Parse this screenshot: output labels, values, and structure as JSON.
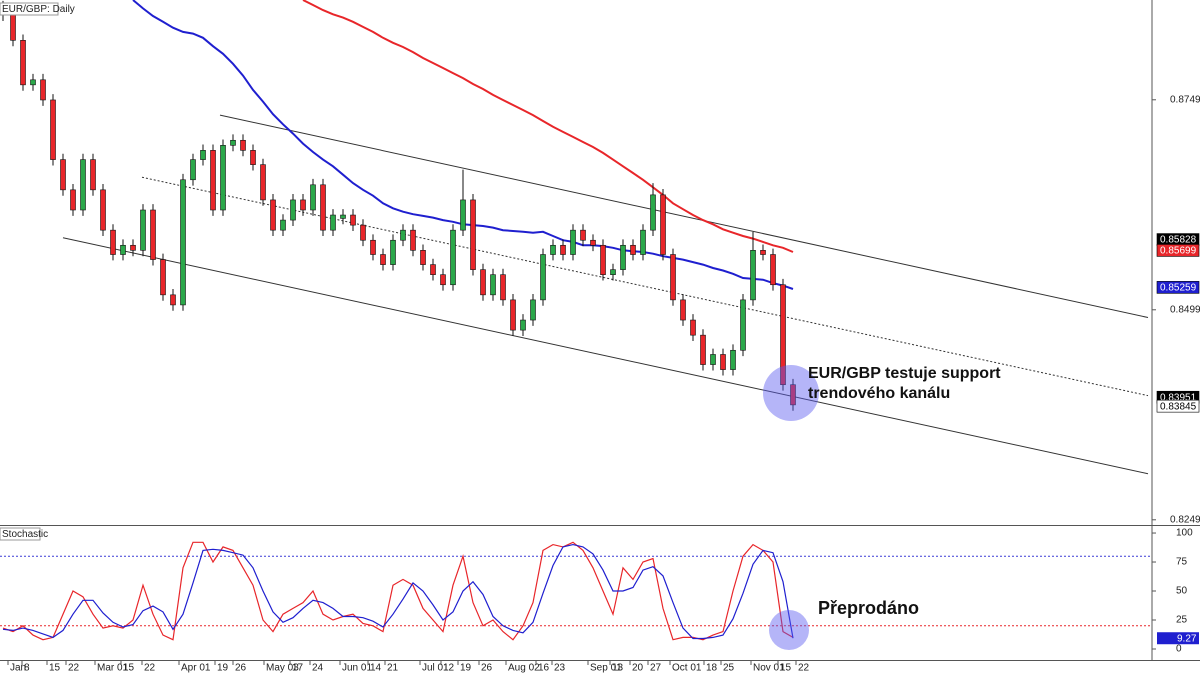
{
  "chart_data": [
    {
      "type": "candlestick",
      "title": "EUR/GBP: Daily",
      "up_color": "#2ba84a",
      "down_color": "#e8262a",
      "open": [
        0.886,
        0.885,
        0.882,
        0.8767,
        0.8773,
        0.8749,
        0.8678,
        0.8642,
        0.8618,
        0.8678,
        0.8642,
        0.8594,
        0.8565,
        0.8576,
        0.857,
        0.8618,
        0.8559,
        0.8517,
        0.8505,
        0.8654,
        0.8678,
        0.8689,
        0.8618,
        0.8695,
        0.8701,
        0.8689,
        0.8672,
        0.863,
        0.8594,
        0.8606,
        0.863,
        0.8618,
        0.8648,
        0.8594,
        0.8608,
        0.8612,
        0.86,
        0.8582,
        0.8565,
        0.8553,
        0.8582,
        0.8594,
        0.857,
        0.8553,
        0.8541,
        0.8529,
        0.8594,
        0.863,
        0.8547,
        0.8517,
        0.8541,
        0.8511,
        0.8475,
        0.8487,
        0.8511,
        0.8565,
        0.8576,
        0.8565,
        0.8594,
        0.8582,
        0.8576,
        0.8541,
        0.8547,
        0.8576,
        0.8565,
        0.8594,
        0.8636,
        0.8565,
        0.8511,
        0.8487,
        0.8469,
        0.8434,
        0.8446,
        0.8428,
        0.8451,
        0.8511,
        0.857,
        0.8565,
        0.8529,
        0.841
      ],
      "high": [
        0.8867,
        0.8857,
        0.8827,
        0.878,
        0.878,
        0.8756,
        0.8685,
        0.8649,
        0.8685,
        0.8685,
        0.8649,
        0.8601,
        0.8583,
        0.8583,
        0.8625,
        0.8625,
        0.8566,
        0.8524,
        0.8661,
        0.8685,
        0.8696,
        0.8696,
        0.8702,
        0.8708,
        0.8708,
        0.8696,
        0.8679,
        0.8637,
        0.8613,
        0.8637,
        0.8637,
        0.8655,
        0.8655,
        0.8619,
        0.8619,
        0.8619,
        0.8607,
        0.8589,
        0.8572,
        0.8589,
        0.8601,
        0.8601,
        0.8577,
        0.856,
        0.8548,
        0.8601,
        0.8666,
        0.8637,
        0.8554,
        0.8548,
        0.8548,
        0.8518,
        0.8494,
        0.8518,
        0.8572,
        0.8583,
        0.8583,
        0.8601,
        0.8601,
        0.8589,
        0.8583,
        0.8554,
        0.8583,
        0.8583,
        0.8601,
        0.865,
        0.8643,
        0.8572,
        0.8518,
        0.8494,
        0.8476,
        0.8453,
        0.8453,
        0.8458,
        0.8518,
        0.8592,
        0.8577,
        0.8572,
        0.8536,
        0.8417
      ],
      "low": [
        0.8843,
        0.8813,
        0.876,
        0.876,
        0.8742,
        0.8671,
        0.8635,
        0.8611,
        0.8611,
        0.8635,
        0.8587,
        0.8558,
        0.8558,
        0.8563,
        0.8563,
        0.8552,
        0.851,
        0.8498,
        0.8498,
        0.8647,
        0.8671,
        0.8611,
        0.8611,
        0.8688,
        0.8682,
        0.8665,
        0.8623,
        0.8587,
        0.8587,
        0.8599,
        0.8611,
        0.8611,
        0.8587,
        0.8587,
        0.8601,
        0.8593,
        0.8575,
        0.8558,
        0.8546,
        0.8546,
        0.8575,
        0.8563,
        0.8546,
        0.8534,
        0.8522,
        0.8522,
        0.8587,
        0.854,
        0.851,
        0.851,
        0.8504,
        0.8468,
        0.8468,
        0.848,
        0.8504,
        0.8558,
        0.8558,
        0.8558,
        0.8575,
        0.8569,
        0.8534,
        0.8534,
        0.854,
        0.8558,
        0.8558,
        0.8587,
        0.8558,
        0.8504,
        0.848,
        0.8462,
        0.8427,
        0.8427,
        0.8421,
        0.8421,
        0.8444,
        0.8504,
        0.8558,
        0.8522,
        0.8403,
        0.8379
      ],
      "close": [
        0.885,
        0.882,
        0.8767,
        0.8773,
        0.8749,
        0.8678,
        0.8642,
        0.8618,
        0.8678,
        0.8642,
        0.8594,
        0.8565,
        0.8576,
        0.857,
        0.8618,
        0.8559,
        0.8517,
        0.8505,
        0.8654,
        0.8678,
        0.8689,
        0.8618,
        0.8695,
        0.8701,
        0.8689,
        0.8672,
        0.863,
        0.8594,
        0.8606,
        0.863,
        0.8618,
        0.8648,
        0.8594,
        0.8612,
        0.8612,
        0.86,
        0.8582,
        0.8565,
        0.8553,
        0.8582,
        0.8594,
        0.857,
        0.8553,
        0.8541,
        0.8529,
        0.8594,
        0.863,
        0.8547,
        0.8517,
        0.8541,
        0.8511,
        0.8475,
        0.8487,
        0.8511,
        0.8565,
        0.8576,
        0.8565,
        0.8594,
        0.8582,
        0.8576,
        0.8541,
        0.8547,
        0.8576,
        0.8565,
        0.8594,
        0.8636,
        0.8565,
        0.8511,
        0.8487,
        0.8469,
        0.8434,
        0.8446,
        0.8428,
        0.8451,
        0.8511,
        0.857,
        0.8565,
        0.8529,
        0.841,
        0.8386
      ],
      "overlays": [
        {
          "color": "#1f1fcf",
          "values": [
            null,
            null,
            null,
            null,
            null,
            null,
            null,
            null,
            null,
            null,
            null,
            null,
            null,
            0.8868,
            0.8858,
            0.8849,
            0.8842,
            0.8835,
            0.883,
            0.8828,
            0.8823,
            0.8813,
            0.8804,
            0.8792,
            0.8778,
            0.8761,
            0.8747,
            0.8732,
            0.872,
            0.8709,
            0.8697,
            0.8687,
            0.8678,
            0.867,
            0.866,
            0.865,
            0.8642,
            0.8635,
            0.8626,
            0.862,
            0.8616,
            0.8613,
            0.8611,
            0.8609,
            0.8606,
            0.8604,
            0.8601,
            0.86,
            0.8599,
            0.8597,
            0.8594,
            0.8593,
            0.8592,
            0.8591,
            0.8592,
            0.8587,
            0.8582,
            0.858,
            0.8576,
            0.8576,
            0.8575,
            0.8573,
            0.857,
            0.8569,
            0.8568,
            0.8566,
            0.8563,
            0.8561,
            0.8559,
            0.8556,
            0.8553,
            0.8549,
            0.8546,
            0.8542,
            0.8537,
            0.8536,
            0.8535,
            0.8531,
            0.8528,
            0.8524
          ]
        },
        {
          "color": "#e8262a",
          "values": [
            null,
            null,
            null,
            null,
            null,
            null,
            null,
            null,
            null,
            null,
            null,
            null,
            null,
            null,
            null,
            null,
            null,
            null,
            null,
            null,
            null,
            null,
            null,
            null,
            null,
            null,
            null,
            null,
            null,
            null,
            0.8868,
            0.8862,
            0.8856,
            0.8851,
            0.8847,
            0.8842,
            0.8836,
            0.883,
            0.8823,
            0.8817,
            0.8812,
            0.8806,
            0.8799,
            0.8793,
            0.8787,
            0.8781,
            0.8775,
            0.8768,
            0.8762,
            0.8755,
            0.8749,
            0.8743,
            0.8737,
            0.8731,
            0.8724,
            0.8717,
            0.8711,
            0.8705,
            0.8699,
            0.8693,
            0.8686,
            0.8678,
            0.867,
            0.8662,
            0.8654,
            0.8645,
            0.8636,
            0.8626,
            0.8619,
            0.8612,
            0.8606,
            0.8601,
            0.8595,
            0.8591,
            0.8587,
            0.8584,
            0.858,
            0.8576,
            0.8573,
            0.8568
          ]
        }
      ],
      "trendlines": [
        {
          "x": [
            21.7,
            114.5
          ],
          "y": [
            0.8731,
            0.849
          ],
          "dashed": false
        },
        {
          "x": [
            6,
            114.5
          ],
          "y": [
            0.8585,
            0.8304
          ],
          "dashed": false
        },
        {
          "x": [
            13.9,
            114.5
          ],
          "y": [
            0.8657,
            0.8397
          ],
          "dashed": true
        }
      ],
      "ylim": [
        0.8243,
        0.8868
      ],
      "yticks": [
        0.87492,
        0.84992,
        0.82492
      ],
      "price_tags": [
        {
          "value": 0.85828,
          "fill": "#000000",
          "text_color": "#ffffff"
        },
        {
          "value": 0.85699,
          "fill": "#e8262a",
          "text_color": "#ffffff"
        },
        {
          "value": 0.85259,
          "fill": "#1f1fcf",
          "text_color": "#ffffff"
        },
        {
          "value": 0.83951,
          "fill": "#000000",
          "text_color": "#ffffff"
        },
        {
          "value": 0.83845,
          "fill": "#ffffff",
          "text_color": "#000000"
        }
      ],
      "annotation": [
        "EUR/GBP testuje support",
        "trendového kanálu"
      ]
    },
    {
      "type": "line",
      "title": "Stochastic",
      "series": [
        {
          "color": "#e8262a",
          "values": [
            18,
            15,
            20,
            12,
            8,
            10,
            30,
            50,
            45,
            30,
            18,
            20,
            18,
            25,
            55,
            30,
            12,
            8,
            70,
            92,
            92,
            75,
            88,
            85,
            70,
            55,
            25,
            15,
            30,
            35,
            40,
            50,
            30,
            25,
            28,
            30,
            22,
            20,
            15,
            55,
            60,
            55,
            35,
            25,
            15,
            55,
            80,
            40,
            20,
            25,
            15,
            8,
            20,
            40,
            85,
            90,
            88,
            92,
            85,
            70,
            50,
            30,
            70,
            60,
            75,
            78,
            35,
            8,
            10,
            10,
            8,
            12,
            15,
            50,
            80,
            90,
            85,
            75,
            15,
            10
          ]
        },
        {
          "color": "#1f1fcf",
          "values": [
            17,
            16,
            18,
            16,
            13,
            10,
            16,
            30,
            42,
            42,
            31,
            23,
            19,
            21,
            33,
            37,
            32,
            17,
            30,
            57,
            85,
            86,
            85,
            83,
            81,
            70,
            50,
            32,
            23,
            27,
            35,
            42,
            40,
            35,
            28,
            28,
            27,
            24,
            19,
            30,
            43,
            57,
            50,
            38,
            25,
            32,
            50,
            58,
            47,
            28,
            20,
            16,
            14,
            23,
            48,
            72,
            88,
            90,
            88,
            82,
            68,
            50,
            50,
            53,
            68,
            71,
            63,
            40,
            18,
            9,
            9,
            10,
            12,
            26,
            48,
            73,
            85,
            83,
            58,
            9.27
          ]
        }
      ],
      "levels": [
        {
          "value": 80,
          "color": "#3b3bd6"
        },
        {
          "value": 20,
          "color": "#e8262a"
        }
      ],
      "ylim": [
        -9.5,
        105.2
      ],
      "yticks": [
        0,
        25,
        50,
        75,
        100
      ],
      "annotation": "Přeprodáno",
      "xlim": [
        -0.3,
        114.9
      ],
      "xticks": [
        {
          "value": 0.5,
          "label": "Jan"
        },
        {
          "value": 1.9,
          "label": "8"
        },
        {
          "value": 4.4,
          "label": "15"
        },
        {
          "value": 6.3,
          "label": "22"
        },
        {
          "value": 9.2,
          "label": "Mar 01"
        },
        {
          "value": 11.8,
          "label": "15"
        },
        {
          "value": 13.9,
          "label": "22"
        },
        {
          "value": 17.6,
          "label": "Apr 01"
        },
        {
          "value": 21.2,
          "label": "19"
        },
        {
          "value": 23,
          "label": "26"
        },
        {
          "value": 26.1,
          "label": "May 03"
        },
        {
          "value": 28.7,
          "label": "17"
        },
        {
          "value": 30.7,
          "label": "24"
        },
        {
          "value": 33.7,
          "label": "Jun 01"
        },
        {
          "value": 36.5,
          "label": "14"
        },
        {
          "value": 38.2,
          "label": "21"
        },
        {
          "value": 41.7,
          "label": "Jul 01"
        },
        {
          "value": 43.8,
          "label": "12"
        },
        {
          "value": 45.5,
          "label": "19"
        },
        {
          "value": 47.6,
          "label": "26"
        },
        {
          "value": 50.3,
          "label": "Aug 02"
        },
        {
          "value": 53.3,
          "label": "16"
        },
        {
          "value": 54.9,
          "label": "23"
        },
        {
          "value": 58.5,
          "label": "Sep 01"
        },
        {
          "value": 60.7,
          "label": "13"
        },
        {
          "value": 62.7,
          "label": "20"
        },
        {
          "value": 64.5,
          "label": "27"
        },
        {
          "value": 66.7,
          "label": "Oct 01"
        },
        {
          "value": 70.1,
          "label": "18"
        },
        {
          "value": 71.8,
          "label": "25"
        },
        {
          "value": 74.8,
          "label": "Nov 01"
        },
        {
          "value": 77.5,
          "label": "15"
        },
        {
          "value": 79.3,
          "label": "22"
        }
      ]
    }
  ]
}
